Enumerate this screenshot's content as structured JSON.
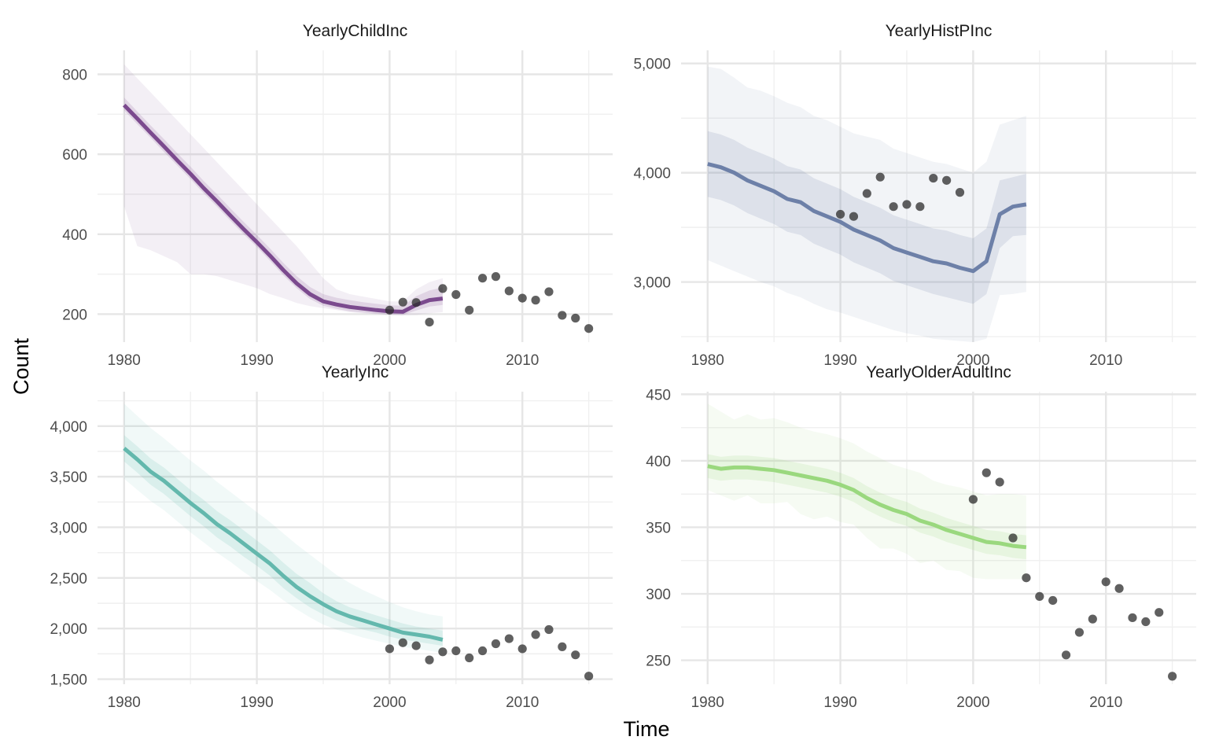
{
  "figure": {
    "xlabel": "Time",
    "ylabel": "Count"
  },
  "chart_data": [
    {
      "type": "line",
      "title": "YearlyChildInc",
      "xlim": [
        1978,
        2016.8
      ],
      "ylim": [
        130,
        860
      ],
      "x_ticks": [
        1980,
        1990,
        2000,
        2010
      ],
      "x_tick_labels": [
        "1980",
        "1990",
        "2000",
        "2010"
      ],
      "y_ticks": [
        200,
        400,
        600,
        800
      ],
      "y_tick_labels": [
        "200",
        "400",
        "600",
        "800"
      ],
      "grid": true,
      "color": "#7b4a8e",
      "fit": {
        "x": [
          1980,
          1981,
          1982,
          1983,
          1984,
          1985,
          1986,
          1987,
          1988,
          1989,
          1990,
          1991,
          1992,
          1993,
          1994,
          1995,
          1996,
          1997,
          1998,
          1999,
          2000,
          2001,
          2002,
          2003,
          2004
        ],
        "y": [
          723,
          689,
          654,
          620,
          585,
          551,
          515,
          482,
          447,
          413,
          380,
          346,
          310,
          277,
          250,
          232,
          224,
          218,
          214,
          210,
          207,
          206,
          223,
          235,
          239
        ],
        "lower50": [
          710,
          675,
          641,
          606,
          572,
          538,
          502,
          469,
          434,
          400,
          368,
          333,
          297,
          265,
          238,
          221,
          213,
          207,
          204,
          201,
          199,
          198,
          209,
          219,
          223
        ],
        "upper50": [
          742,
          707,
          672,
          638,
          603,
          569,
          533,
          500,
          465,
          431,
          398,
          364,
          328,
          295,
          268,
          250,
          241,
          235,
          230,
          226,
          222,
          221,
          245,
          259,
          267
        ],
        "lower95": [
          470,
          370,
          360,
          345,
          330,
          300,
          300,
          295,
          285,
          275,
          265,
          250,
          240,
          228,
          220,
          215,
          210,
          205,
          202,
          200,
          198,
          197,
          198,
          202,
          205
        ],
        "upper95": [
          825,
          790,
          755,
          720,
          685,
          650,
          615,
          580,
          545,
          510,
          475,
          440,
          405,
          370,
          330,
          290,
          262,
          250,
          244,
          238,
          232,
          232,
          262,
          280,
          290
        ]
      },
      "observed": {
        "x": [
          2000,
          2001,
          2002,
          2003,
          2004,
          2005,
          2006,
          2007,
          2008,
          2009,
          2010,
          2011,
          2012,
          2013,
          2014,
          2015
        ],
        "y": [
          210,
          230,
          229,
          180,
          264,
          249,
          210,
          290,
          294,
          258,
          240,
          235,
          256,
          197,
          190,
          164
        ]
      }
    },
    {
      "type": "line",
      "title": "YearlyHistPInc",
      "xlim": [
        1978,
        2016.8
      ],
      "ylim": [
        2450,
        5120
      ],
      "x_ticks": [
        1980,
        1990,
        2000,
        2010
      ],
      "x_tick_labels": [
        "1980",
        "1990",
        "2000",
        "2010"
      ],
      "y_ticks": [
        3000,
        4000,
        5000
      ],
      "y_tick_labels": [
        "3,000",
        "4,000",
        "5,000"
      ],
      "grid": true,
      "color": "#6d80a8",
      "fit": {
        "x": [
          1980,
          1981,
          1982,
          1983,
          1984,
          1985,
          1986,
          1987,
          1988,
          1989,
          1990,
          1991,
          1992,
          1993,
          1994,
          1995,
          1996,
          1997,
          1998,
          1999,
          2000,
          2001,
          2002,
          2003,
          2004
        ],
        "y": [
          4080,
          4050,
          4000,
          3930,
          3880,
          3830,
          3760,
          3730,
          3650,
          3600,
          3550,
          3480,
          3430,
          3380,
          3310,
          3270,
          3230,
          3190,
          3170,
          3130,
          3100,
          3190,
          3620,
          3690,
          3710
        ],
        "lower50": [
          3780,
          3750,
          3700,
          3630,
          3580,
          3530,
          3460,
          3430,
          3350,
          3300,
          3250,
          3180,
          3130,
          3080,
          3010,
          2970,
          2930,
          2890,
          2860,
          2830,
          2800,
          2890,
          3310,
          3420,
          3430
        ],
        "upper50": [
          4380,
          4350,
          4300,
          4230,
          4180,
          4130,
          4060,
          4030,
          3950,
          3900,
          3850,
          3780,
          3730,
          3680,
          3610,
          3570,
          3530,
          3490,
          3470,
          3430,
          3400,
          3490,
          3930,
          3960,
          3990
        ],
        "lower95": [
          3200,
          3150,
          3100,
          3050,
          3000,
          2960,
          2900,
          2860,
          2800,
          2750,
          2720,
          2680,
          2640,
          2600,
          2560,
          2530,
          2510,
          2480,
          2470,
          2460,
          2450,
          2480,
          2880,
          2890,
          2910
        ],
        "upper95": [
          4970,
          4950,
          4870,
          4780,
          4750,
          4700,
          4640,
          4600,
          4520,
          4480,
          4420,
          4360,
          4330,
          4300,
          4220,
          4180,
          4140,
          4100,
          4080,
          4040,
          4000,
          4100,
          4440,
          4480,
          4520
        ]
      },
      "observed": {
        "x": [
          1990,
          1991,
          1992,
          1993,
          1994,
          1995,
          1996,
          1997,
          1998,
          1999
        ],
        "y": [
          3620,
          3600,
          3810,
          3960,
          3690,
          3710,
          3690,
          3950,
          3930,
          3820
        ]
      }
    },
    {
      "type": "line",
      "title": "YearlyInc",
      "xlim": [
        1978,
        2016.8
      ],
      "ylim": [
        1450,
        4340
      ],
      "x_ticks": [
        1980,
        1990,
        2000,
        2010
      ],
      "x_tick_labels": [
        "1980",
        "1990",
        "2000",
        "2010"
      ],
      "y_ticks": [
        1500,
        2000,
        2500,
        3000,
        3500,
        4000
      ],
      "y_tick_labels": [
        "1,500",
        "2,000",
        "2,500",
        "3,000",
        "3,500",
        "4,000"
      ],
      "grid": true,
      "color": "#63b8ad",
      "fit": {
        "x": [
          1980,
          1981,
          1982,
          1983,
          1984,
          1985,
          1986,
          1987,
          1988,
          1989,
          1990,
          1991,
          1992,
          1993,
          1994,
          1995,
          1996,
          1997,
          1998,
          1999,
          2000,
          2001,
          2002,
          2003,
          2004
        ],
        "y": [
          3780,
          3670,
          3550,
          3460,
          3350,
          3240,
          3140,
          3030,
          2940,
          2840,
          2740,
          2640,
          2520,
          2410,
          2320,
          2240,
          2170,
          2120,
          2080,
          2040,
          2000,
          1960,
          1940,
          1920,
          1890
        ],
        "lower50": [
          3650,
          3540,
          3420,
          3330,
          3220,
          3110,
          3010,
          2900,
          2810,
          2710,
          2620,
          2520,
          2400,
          2300,
          2210,
          2140,
          2080,
          2030,
          1990,
          1960,
          1920,
          1890,
          1870,
          1850,
          1830
        ],
        "upper50": [
          3910,
          3800,
          3680,
          3590,
          3480,
          3370,
          3270,
          3160,
          3070,
          2970,
          2870,
          2770,
          2650,
          2540,
          2450,
          2350,
          2270,
          2210,
          2170,
          2130,
          2090,
          2050,
          2020,
          2000,
          1980
        ],
        "lower95": [
          3480,
          3370,
          3260,
          3170,
          3060,
          2950,
          2850,
          2750,
          2660,
          2560,
          2470,
          2380,
          2280,
          2190,
          2110,
          2040,
          1990,
          1950,
          1910,
          1880,
          1850,
          1820,
          1800,
          1780,
          1760
        ],
        "upper95": [
          4220,
          4100,
          3980,
          3880,
          3770,
          3660,
          3560,
          3450,
          3350,
          3250,
          3150,
          3050,
          2940,
          2830,
          2730,
          2630,
          2530,
          2450,
          2380,
          2320,
          2260,
          2210,
          2170,
          2140,
          2120
        ]
      },
      "observed": {
        "x": [
          2000,
          2001,
          2002,
          2003,
          2004,
          2005,
          2006,
          2007,
          2008,
          2009,
          2010,
          2011,
          2012,
          2013,
          2014,
          2015
        ],
        "y": [
          1800,
          1860,
          1830,
          1690,
          1770,
          1780,
          1710,
          1780,
          1850,
          1900,
          1800,
          1940,
          1990,
          1820,
          1740,
          1530
        ]
      }
    },
    {
      "type": "line",
      "title": "YearlyOlderAdultInc",
      "xlim": [
        1978,
        2016.8
      ],
      "ylim": [
        232,
        452
      ],
      "x_ticks": [
        1980,
        1990,
        2000,
        2010
      ],
      "x_tick_labels": [
        "1980",
        "1990",
        "2000",
        "2010"
      ],
      "y_ticks": [
        250,
        300,
        350,
        400,
        450
      ],
      "y_tick_labels": [
        "250",
        "300",
        "350",
        "400",
        "450"
      ],
      "grid": true,
      "color": "#9ad87e",
      "fit": {
        "x": [
          1980,
          1981,
          1982,
          1983,
          1984,
          1985,
          1986,
          1987,
          1988,
          1989,
          1990,
          1991,
          1992,
          1993,
          1994,
          1995,
          1996,
          1997,
          1998,
          1999,
          2000,
          2001,
          2002,
          2003,
          2004
        ],
        "y": [
          396,
          394,
          395,
          395,
          394,
          393,
          391,
          389,
          387,
          385,
          382,
          378,
          372,
          367,
          363,
          360,
          355,
          352,
          348,
          345,
          342,
          339,
          338,
          336,
          335
        ],
        "lower50": [
          387,
          385,
          386,
          386,
          385,
          384,
          382,
          380,
          378,
          376,
          373,
          369,
          363,
          358,
          354,
          351,
          346,
          343,
          339,
          336,
          333,
          330,
          329,
          327,
          326
        ],
        "upper50": [
          405,
          403,
          404,
          404,
          403,
          402,
          400,
          398,
          396,
          394,
          391,
          387,
          381,
          376,
          372,
          369,
          364,
          361,
          357,
          354,
          351,
          348,
          347,
          345,
          344
        ],
        "lower95": [
          378,
          374,
          370,
          374,
          368,
          368,
          369,
          360,
          356,
          358,
          354,
          352,
          342,
          334,
          334,
          330,
          323,
          325,
          318,
          317,
          312,
          311,
          311,
          311,
          311
        ],
        "upper95": [
          443,
          437,
          431,
          435,
          431,
          432,
          429,
          425,
          422,
          420,
          417,
          413,
          407,
          402,
          397,
          394,
          391,
          385,
          382,
          380,
          377,
          374,
          375,
          375,
          374
        ]
      },
      "observed": {
        "x": [
          2000,
          2001,
          2002,
          2003,
          2004,
          2005,
          2006,
          2007,
          2008,
          2009,
          2010,
          2011,
          2012,
          2013,
          2014,
          2015
        ],
        "y": [
          371,
          391,
          384,
          342,
          312,
          298,
          295,
          254,
          271,
          281,
          309,
          304,
          282,
          279,
          286,
          238
        ]
      }
    }
  ]
}
